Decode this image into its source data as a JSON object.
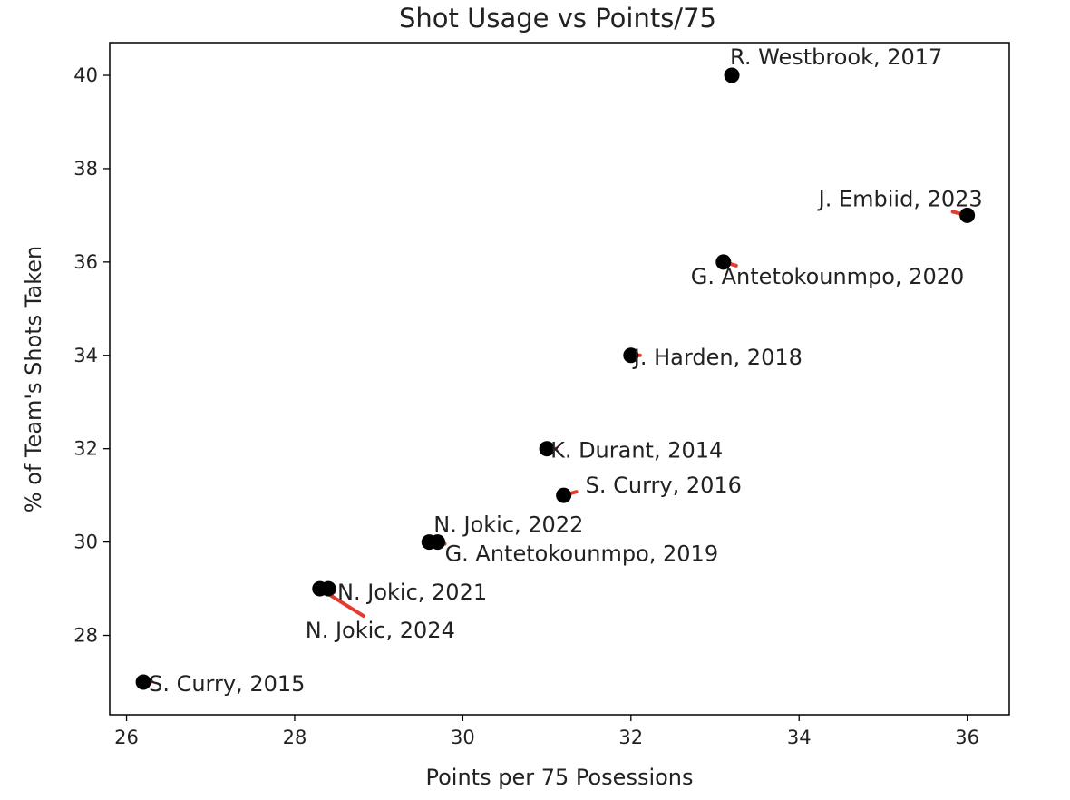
{
  "chart_data": {
    "type": "scatter",
    "title": "Shot Usage vs Points/75",
    "xlabel": "Points per 75 Posessions",
    "ylabel": "% of Team's Shots Taken",
    "xlim": [
      25.8,
      36.5
    ],
    "ylim": [
      26.3,
      40.7
    ],
    "xticks": [
      26,
      28,
      30,
      32,
      34,
      36
    ],
    "yticks": [
      28,
      30,
      32,
      34,
      36,
      38,
      40
    ],
    "grid": false,
    "marker_color": "#000000",
    "leader_color": "#e8392b",
    "points": [
      {
        "label": "S. Curry, 2015",
        "x": 26.2,
        "y": 27.0
      },
      {
        "label": "N. Jokic, 2024",
        "x": 28.3,
        "y": 29.0
      },
      {
        "label": "N. Jokic, 2021",
        "x": 28.4,
        "y": 29.0
      },
      {
        "label": "N. Jokic, 2022",
        "x": 29.6,
        "y": 30.0
      },
      {
        "label": "G. Antetokounmpo, 2019",
        "x": 29.7,
        "y": 30.0
      },
      {
        "label": "K. Durant, 2014",
        "x": 31.0,
        "y": 32.0
      },
      {
        "label": "S. Curry, 2016",
        "x": 31.2,
        "y": 31.0
      },
      {
        "label": "J. Harden, 2018",
        "x": 32.0,
        "y": 34.0
      },
      {
        "label": "G. Antetokounmpo, 2020",
        "x": 33.1,
        "y": 36.0
      },
      {
        "label": "R. Westbrook, 2017",
        "x": 33.2,
        "y": 40.0
      },
      {
        "label": "J. Embiid, 2023",
        "x": 36.0,
        "y": 37.0
      }
    ]
  }
}
